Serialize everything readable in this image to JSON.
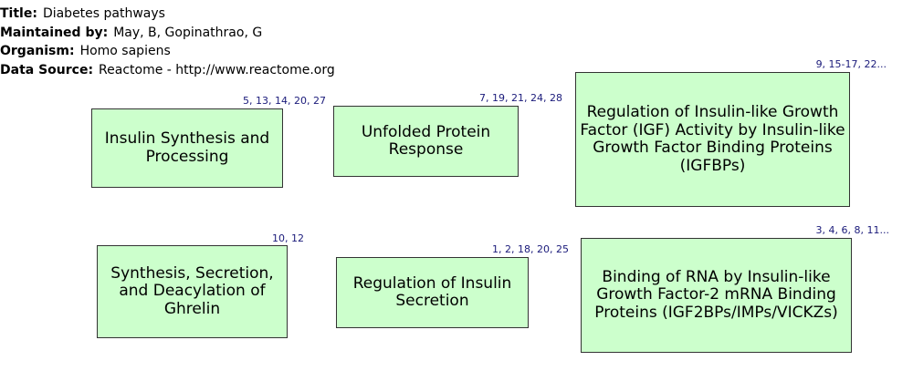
{
  "metadata": {
    "title_key": "Title:",
    "title_value": "Diabetes pathways",
    "maintainer_key": "Maintained by:",
    "maintainer_value": "May, B, Gopinathrao, G",
    "organism_key": "Organism:",
    "organism_value": "Homo sapiens",
    "source_key": "Data Source:",
    "source_value": "Reactome - http://www.reactome.org"
  },
  "nodes": [
    {
      "label": "Insulin Synthesis and\nProcessing",
      "refs": "5, 13, 14, 20, 27"
    },
    {
      "label": "Unfolded Protein\nResponse",
      "refs": "7, 19, 21, 24, 28"
    },
    {
      "label": "Regulation of Insulin-like Growth\nFactor (IGF) Activity by Insulin-like\nGrowth Factor Binding Proteins\n(IGFBPs)",
      "refs": "9, 15-17, 22..."
    },
    {
      "label": "Synthesis, Secretion,\nand Deacylation of\nGhrelin",
      "refs": "10, 12"
    },
    {
      "label": "Regulation of Insulin\nSecretion",
      "refs": "1, 2, 18, 20, 25"
    },
    {
      "label": "Binding of RNA by Insulin-like\nGrowth Factor-2 mRNA Binding\nProteins (IGF2BPs/IMPs/VICKZs)",
      "refs": "3, 4, 6, 8, 11..."
    }
  ],
  "colors": {
    "node_fill": "#ccffcc",
    "node_border": "#333333",
    "ref_text": "#1a1a7a"
  }
}
